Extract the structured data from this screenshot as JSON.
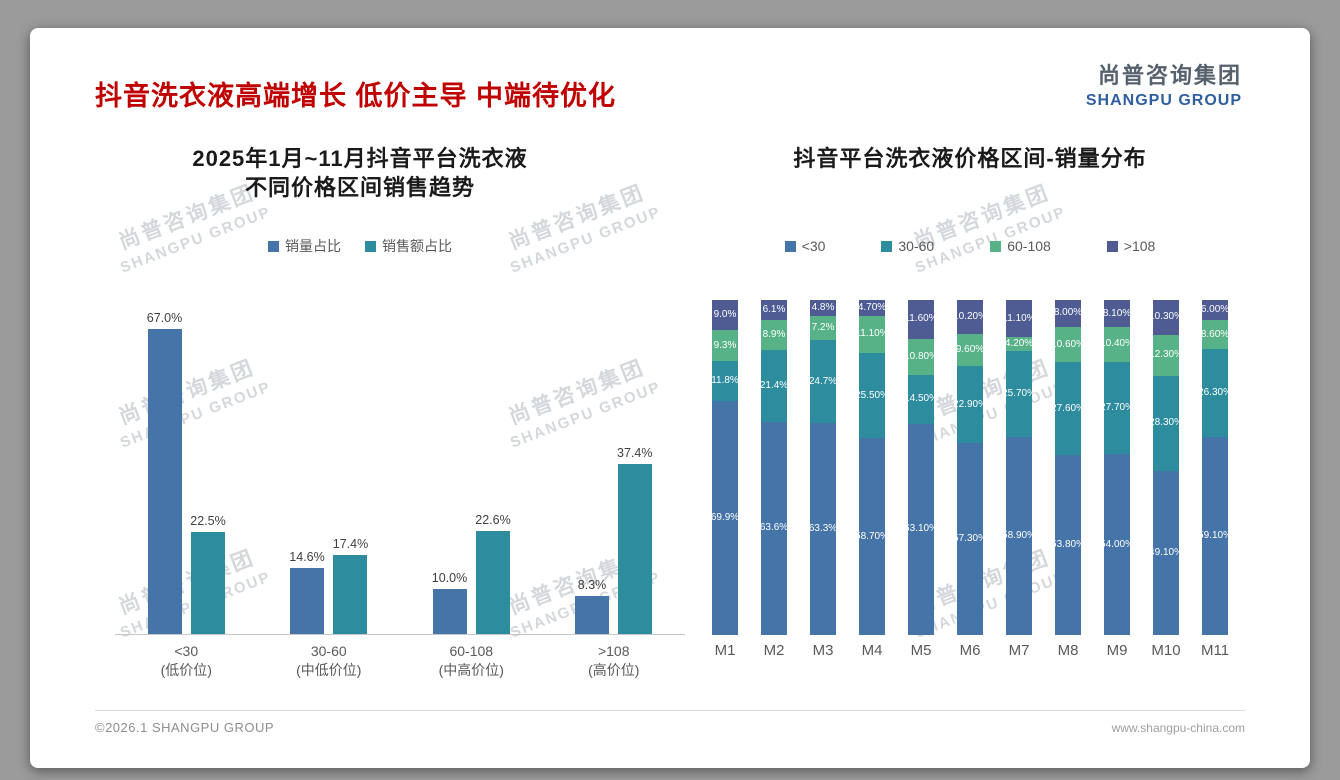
{
  "slide": {
    "title": "抖音洗衣液高端增长 低价主导 中端待优化",
    "logo": {
      "cn": "尚普咨询集团",
      "en": "SHANGPU GROUP"
    },
    "watermark": {
      "line1": "尚普咨询集团",
      "line2": "SHANGPU GROUP"
    },
    "footer": {
      "left": "©2026.1 SHANGPU GROUP",
      "right": "www.shangpu-china.com"
    }
  },
  "colors": {
    "title_red": "#C00000",
    "series_blue": "#4574A9",
    "series_teal": "#2D8C9E",
    "series_green": "#57B287",
    "series_purple": "#4E5C93",
    "logo_blue": "#2F5F9F"
  },
  "chart_data": [
    {
      "type": "bar",
      "title": "2025年1月~11月抖音平台洗衣液不同价格区间销售趋势",
      "title_lines": [
        "2025年1月~11月抖音平台洗衣液",
        "不同价格区间销售趋势"
      ],
      "categories": [
        "<30",
        "30-60",
        "60-108",
        ">108"
      ],
      "category_sublabels": [
        "(低价位)",
        "(中低价位)",
        "(中高价位)",
        "(高价位)"
      ],
      "series": [
        {
          "name": "销量占比",
          "color": "#4574A9",
          "values": [
            67.0,
            14.6,
            10.0,
            8.3
          ]
        },
        {
          "name": "销售额占比",
          "color": "#2D8C9E",
          "values": [
            22.5,
            17.4,
            22.6,
            37.4
          ]
        }
      ],
      "value_suffix": "%",
      "ylim": [
        0,
        70
      ],
      "grid": false,
      "legend_position": "top"
    },
    {
      "type": "stacked-bar-100",
      "title": "抖音平台洗衣液价格区间-销量分布",
      "categories": [
        "M1",
        "M2",
        "M3",
        "M4",
        "M5",
        "M6",
        "M7",
        "M8",
        "M9",
        "M10",
        "M11"
      ],
      "series": [
        {
          "name": "<30",
          "color": "#4574A9",
          "values": [
            69.9,
            63.6,
            63.3,
            58.7,
            63.1,
            57.3,
            58.9,
            53.8,
            54.0,
            49.1,
            59.1
          ]
        },
        {
          "name": "30-60",
          "color": "#2D8C9E",
          "values": [
            11.8,
            21.4,
            24.7,
            25.5,
            14.5,
            22.9,
            25.7,
            27.6,
            27.7,
            28.3,
            26.3
          ]
        },
        {
          "name": "60-108",
          "color": "#57B287",
          "values": [
            9.3,
            8.9,
            7.2,
            11.1,
            10.8,
            9.6,
            4.2,
            10.6,
            10.4,
            12.3,
            8.6
          ]
        },
        {
          "name": ">108",
          "color": "#4E5C93",
          "values": [
            9.0,
            6.1,
            4.8,
            4.7,
            11.6,
            10.2,
            11.1,
            8.0,
            8.1,
            10.3,
            6.0
          ]
        }
      ],
      "label_decimals": [
        1,
        1,
        1,
        2,
        2,
        2,
        2,
        2,
        2,
        2,
        2
      ],
      "value_suffix": "%",
      "ylim": [
        0,
        100
      ],
      "grid": false,
      "legend_position": "top"
    }
  ]
}
